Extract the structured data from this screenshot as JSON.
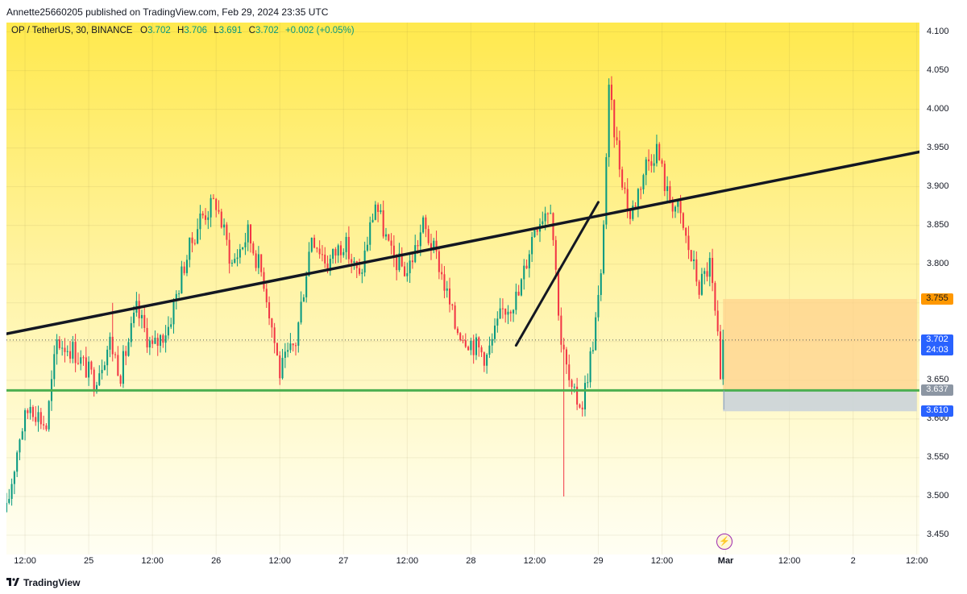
{
  "header": {
    "published": "Annette25660205 published on TradingView.com, Feb 29, 2024 23:35 UTC"
  },
  "legend": {
    "symbol": "OP / TetherUS, 30, BINANCE",
    "o_label": "O",
    "o": "3.702",
    "h_label": "H",
    "h": "3.706",
    "l_label": "L",
    "l": "3.691",
    "c_label": "C",
    "c": "3.702",
    "change": "+0.002 (+0.05%)"
  },
  "footer": {
    "brand": "TradingView"
  },
  "colors": {
    "up": "#089981",
    "down": "#f23645",
    "support_line": "#4caf50",
    "trend_line": "#131722",
    "target_zone": "#ffd08a",
    "stop_zone": "#c8d1da",
    "badge_blue": "#2962ff",
    "badge_orange": "#ff9800"
  },
  "chart_data": {
    "type": "candlestick",
    "symbol": "OP / TetherUS",
    "interval": "30",
    "exchange": "BINANCE",
    "ylim": [
      3.425,
      4.112
    ],
    "y_ticks": [
      3.45,
      3.5,
      3.55,
      3.6,
      3.65,
      3.7,
      3.75,
      3.8,
      3.85,
      3.9,
      3.95,
      4.0,
      4.05,
      4.1
    ],
    "y_tick_labels": [
      "3.450",
      "3.500",
      "3.550",
      "3.600",
      "3.650",
      "3.700",
      "3.750",
      "3.800",
      "3.850",
      "3.900",
      "3.950",
      "4.000",
      "4.050",
      "4.100"
    ],
    "x_range": [
      "Feb 24 08:30",
      "Mar 2 12:30"
    ],
    "x_ticks": [
      {
        "time": "Feb 24 12:00",
        "label": "12:00"
      },
      {
        "time": "Feb 25 00:00",
        "label": "25"
      },
      {
        "time": "Feb 25 12:00",
        "label": "12:00"
      },
      {
        "time": "Feb 26 00:00",
        "label": "26"
      },
      {
        "time": "Feb 26 12:00",
        "label": "12:00"
      },
      {
        "time": "Feb 27 00:00",
        "label": "27"
      },
      {
        "time": "Feb 27 12:00",
        "label": "12:00"
      },
      {
        "time": "Feb 28 00:00",
        "label": "28"
      },
      {
        "time": "Feb 28 12:00",
        "label": "12:00"
      },
      {
        "time": "Feb 29 00:00",
        "label": "29"
      },
      {
        "time": "Feb 29 12:00",
        "label": "12:00"
      },
      {
        "time": "Mar 1 00:00",
        "label": "Mar"
      },
      {
        "time": "Mar 1 12:00",
        "label": "12:00"
      },
      {
        "time": "Mar 2 00:00",
        "label": "2"
      },
      {
        "time": "Mar 2 12:00",
        "label": "12:00"
      }
    ],
    "price_path": [
      {
        "time": "Feb 24 08:30",
        "price": 3.48
      },
      {
        "time": "Feb 24 11:00",
        "price": 3.58
      },
      {
        "time": "Feb 24 13:00",
        "price": 3.62
      },
      {
        "time": "Feb 24 16:00",
        "price": 3.59
      },
      {
        "time": "Feb 24 18:00",
        "price": 3.7
      },
      {
        "time": "Feb 24 21:00",
        "price": 3.69
      },
      {
        "time": "Feb 25 01:00",
        "price": 3.65
      },
      {
        "time": "Feb 25 04:00",
        "price": 3.7
      },
      {
        "time": "Feb 25 06:00",
        "price": 3.66
      },
      {
        "time": "Feb 25 09:00",
        "price": 3.74
      },
      {
        "time": "Feb 25 12:00",
        "price": 3.69
      },
      {
        "time": "Feb 25 15:00",
        "price": 3.72
      },
      {
        "time": "Feb 25 18:00",
        "price": 3.8
      },
      {
        "time": "Feb 25 21:00",
        "price": 3.86
      },
      {
        "time": "Feb 26 00:00",
        "price": 3.88
      },
      {
        "time": "Feb 26 03:00",
        "price": 3.8
      },
      {
        "time": "Feb 26 06:00",
        "price": 3.84
      },
      {
        "time": "Feb 26 09:00",
        "price": 3.78
      },
      {
        "time": "Feb 26 12:00",
        "price": 3.66
      },
      {
        "time": "Feb 26 15:00",
        "price": 3.7
      },
      {
        "time": "Feb 26 18:00",
        "price": 3.84
      },
      {
        "time": "Feb 26 21:00",
        "price": 3.8
      },
      {
        "time": "Feb 27 00:00",
        "price": 3.83
      },
      {
        "time": "Feb 27 03:00",
        "price": 3.78
      },
      {
        "time": "Feb 27 06:00",
        "price": 3.88
      },
      {
        "time": "Feb 27 09:00",
        "price": 3.81
      },
      {
        "time": "Feb 27 12:00",
        "price": 3.79
      },
      {
        "time": "Feb 27 15:00",
        "price": 3.85
      },
      {
        "time": "Feb 27 18:00",
        "price": 3.8
      },
      {
        "time": "Feb 27 21:00",
        "price": 3.72
      },
      {
        "time": "Feb 28 00:00",
        "price": 3.7
      },
      {
        "time": "Feb 28 03:00",
        "price": 3.68
      },
      {
        "time": "Feb 28 06:00",
        "price": 3.74
      },
      {
        "time": "Feb 28 09:00",
        "price": 3.76
      },
      {
        "time": "Feb 28 12:00",
        "price": 3.85
      },
      {
        "time": "Feb 28 15:00",
        "price": 3.88
      },
      {
        "time": "Feb 28 17:00",
        "price": 3.7
      },
      {
        "time": "Feb 28 19:00",
        "price": 3.63
      },
      {
        "time": "Feb 28 21:00",
        "price": 3.62
      },
      {
        "time": "Feb 28 23:00",
        "price": 3.7
      },
      {
        "time": "Feb 29 00:30",
        "price": 3.78
      },
      {
        "time": "Feb 29 02:00",
        "price": 4.02
      },
      {
        "time": "Feb 29 04:00",
        "price": 3.93
      },
      {
        "time": "Feb 29 06:00",
        "price": 3.86
      },
      {
        "time": "Feb 29 09:00",
        "price": 3.93
      },
      {
        "time": "Feb 29 11:00",
        "price": 3.95
      },
      {
        "time": "Feb 29 13:00",
        "price": 3.89
      },
      {
        "time": "Feb 29 15:00",
        "price": 3.87
      },
      {
        "time": "Feb 29 17:00",
        "price": 3.82
      },
      {
        "time": "Feb 29 19:00",
        "price": 3.77
      },
      {
        "time": "Feb 29 21:00",
        "price": 3.8
      },
      {
        "time": "Feb 29 22:30",
        "price": 3.7
      },
      {
        "time": "Feb 29 23:00",
        "price": 3.64
      },
      {
        "time": "Feb 29 23:30",
        "price": 3.702
      }
    ],
    "wick_extremes": [
      {
        "time": "Feb 28 17:30",
        "low": 3.5
      },
      {
        "time": "Feb 29 02:00",
        "high": 4.04
      },
      {
        "time": "Feb 25 04:30",
        "high": 3.75
      }
    ],
    "last_price": 3.702,
    "countdown": "24:03",
    "drawings": {
      "trendline_main": {
        "from": {
          "time": "Feb 24 08:30",
          "price": 3.71
        },
        "to": {
          "time": "Mar 2 12:30",
          "price": 3.945
        }
      },
      "trendline_short": {
        "from": {
          "time": "Feb 28 08:30",
          "price": 3.695
        },
        "to": {
          "time": "Feb 29 00:00",
          "price": 3.88
        }
      },
      "support": {
        "price": 3.637
      },
      "long_position": {
        "start": "Feb 29 23:30",
        "end": "Mar 2 12:00",
        "entry": 3.637,
        "target": 3.755,
        "stop": 3.61
      }
    },
    "price_badges": [
      {
        "price": 3.755,
        "label": "3.755",
        "kind": "target"
      },
      {
        "price": 3.702,
        "label": "3.702",
        "sub": "24:03",
        "kind": "last"
      },
      {
        "price": 3.637,
        "label": "3.637",
        "kind": "entry"
      },
      {
        "price": 3.61,
        "label": "3.610",
        "kind": "stop"
      }
    ]
  }
}
